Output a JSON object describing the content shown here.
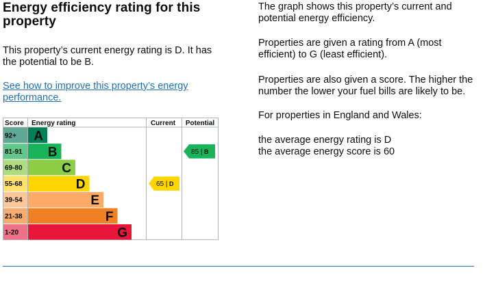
{
  "heading": "Energy efficiency rating for this property",
  "current_text": "This property’s current energy rating is D. It has the potential to be B.",
  "improve_link": "See how to improve this property’s energy performance.",
  "info": {
    "graph_text": "The graph shows this property’s current and potential energy efficiency.",
    "rating_text": "Properties are given a rating from A (most efficient) to G (least efficient).",
    "score_text": "Properties are also given a score. The higher the number the lower your fuel bills are likely to be.",
    "region_text": "For properties in England and Wales:",
    "avg_rating": "the average energy rating is D",
    "avg_score": "the average energy score is 60"
  },
  "chart_data": {
    "type": "table",
    "headers": {
      "score": "Score",
      "rating": "Energy rating",
      "current": "Current",
      "potential": "Potential"
    },
    "bands": [
      {
        "letter": "A",
        "range": "92+",
        "color": "#008054",
        "range_bg": "#60a996"
      },
      {
        "letter": "B",
        "range": "81-91",
        "color": "#19b459",
        "range_bg": "#63c78b"
      },
      {
        "letter": "C",
        "range": "69-80",
        "color": "#8dce46",
        "range_bg": "#b0dc81"
      },
      {
        "letter": "D",
        "range": "55-68",
        "color": "#ffd500",
        "range_bg": "#fee26a"
      },
      {
        "letter": "E",
        "range": "39-54",
        "color": "#fcaa65",
        "range_bg": "#fcc899"
      },
      {
        "letter": "F",
        "range": "21-38",
        "color": "#ef8023",
        "range_bg": "#f4ad6e"
      },
      {
        "letter": "G",
        "range": "1-20",
        "color": "#e9153b",
        "range_bg": "#f07088"
      }
    ],
    "current": {
      "score": 65,
      "letter": "D",
      "label": "65 | D",
      "color": "#ffd500"
    },
    "potential": {
      "score": 85,
      "letter": "B",
      "label": "85 | B",
      "color": "#19b459"
    }
  }
}
